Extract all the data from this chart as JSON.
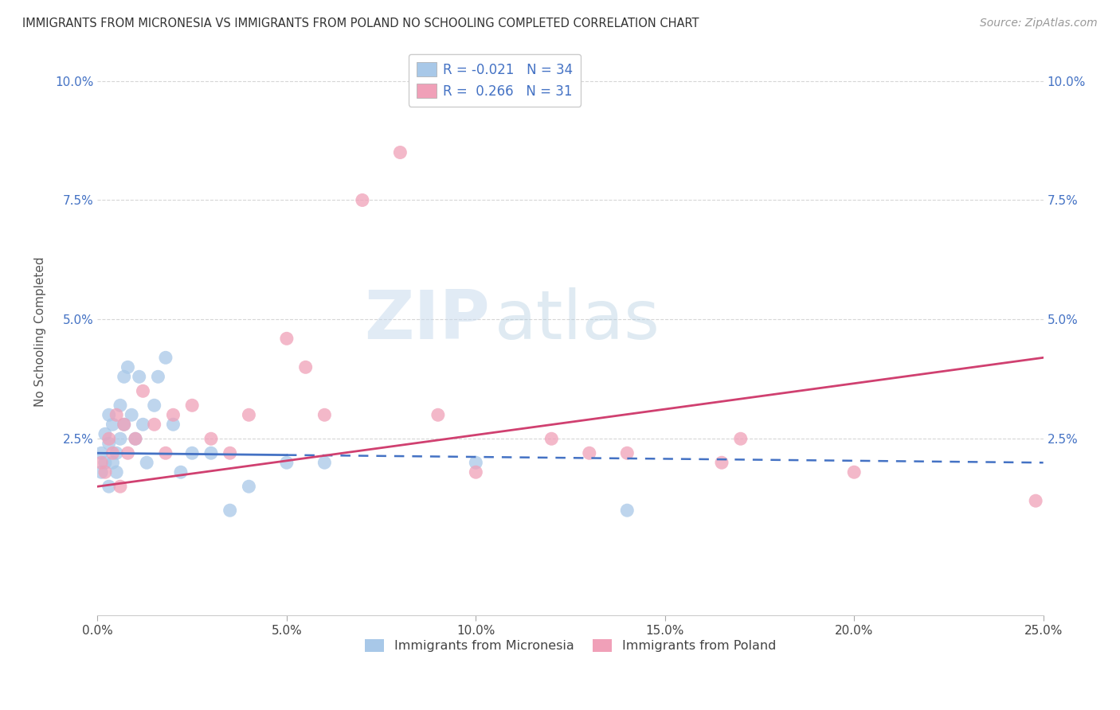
{
  "title": "IMMIGRANTS FROM MICRONESIA VS IMMIGRANTS FROM POLAND NO SCHOOLING COMPLETED CORRELATION CHART",
  "source": "Source: ZipAtlas.com",
  "ylabel": "No Schooling Completed",
  "xlim": [
    0.0,
    0.25
  ],
  "ylim": [
    -0.012,
    0.107
  ],
  "yticks": [
    0.025,
    0.05,
    0.075,
    0.1
  ],
  "ytick_labels": [
    "2.5%",
    "5.0%",
    "7.5%",
    "10.0%"
  ],
  "xticks": [
    0.0,
    0.05,
    0.1,
    0.15,
    0.2,
    0.25
  ],
  "xtick_labels": [
    "0.0%",
    "5.0%",
    "10.0%",
    "15.0%",
    "20.0%",
    "25.0%"
  ],
  "micronesia_color": "#a8c8e8",
  "poland_color": "#f0a0b8",
  "micronesia_line_color": "#4472c4",
  "poland_line_color": "#d04070",
  "micronesia_R": -0.021,
  "micronesia_N": 34,
  "poland_R": 0.266,
  "poland_N": 31,
  "watermark_zip": "ZIP",
  "watermark_atlas": "atlas",
  "micronesia_x": [
    0.001,
    0.001,
    0.002,
    0.002,
    0.003,
    0.003,
    0.003,
    0.004,
    0.004,
    0.005,
    0.005,
    0.006,
    0.006,
    0.007,
    0.007,
    0.008,
    0.009,
    0.01,
    0.011,
    0.012,
    0.013,
    0.015,
    0.016,
    0.018,
    0.02,
    0.022,
    0.025,
    0.03,
    0.035,
    0.04,
    0.05,
    0.06,
    0.1,
    0.14
  ],
  "micronesia_y": [
    0.022,
    0.018,
    0.026,
    0.02,
    0.03,
    0.024,
    0.015,
    0.028,
    0.02,
    0.022,
    0.018,
    0.025,
    0.032,
    0.038,
    0.028,
    0.04,
    0.03,
    0.025,
    0.038,
    0.028,
    0.02,
    0.032,
    0.038,
    0.042,
    0.028,
    0.018,
    0.022,
    0.022,
    0.01,
    0.015,
    0.02,
    0.02,
    0.02,
    0.01
  ],
  "poland_x": [
    0.001,
    0.002,
    0.003,
    0.004,
    0.005,
    0.006,
    0.007,
    0.008,
    0.01,
    0.012,
    0.015,
    0.018,
    0.02,
    0.025,
    0.03,
    0.035,
    0.04,
    0.05,
    0.055,
    0.06,
    0.07,
    0.08,
    0.09,
    0.1,
    0.12,
    0.13,
    0.14,
    0.165,
    0.17,
    0.2,
    0.248
  ],
  "poland_y": [
    0.02,
    0.018,
    0.025,
    0.022,
    0.03,
    0.015,
    0.028,
    0.022,
    0.025,
    0.035,
    0.028,
    0.022,
    0.03,
    0.032,
    0.025,
    0.022,
    0.03,
    0.046,
    0.04,
    0.03,
    0.075,
    0.085,
    0.03,
    0.018,
    0.025,
    0.022,
    0.022,
    0.02,
    0.025,
    0.018,
    0.012
  ],
  "background_color": "#ffffff",
  "grid_color": "#cccccc",
  "mic_line_x0": 0.0,
  "mic_line_x1": 0.05,
  "mic_line_x2": 0.25,
  "mic_line_y_start": 0.022,
  "mic_line_y_end": 0.02,
  "pol_line_x0": 0.0,
  "pol_line_x1": 0.25,
  "pol_line_y_start": 0.015,
  "pol_line_y_end": 0.042
}
